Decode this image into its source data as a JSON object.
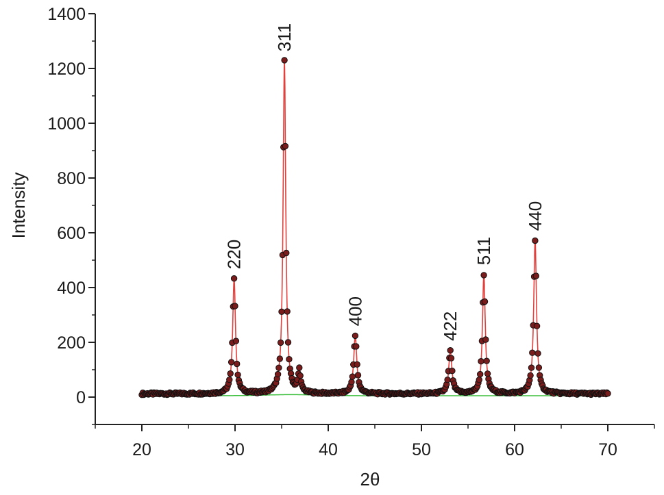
{
  "chart_data": {
    "type": "scatter",
    "xlabel": "2θ",
    "ylabel": "Intensity",
    "xlim": [
      15,
      75
    ],
    "ylim": [
      -100,
      1400
    ],
    "x_ticks": [
      20,
      30,
      40,
      50,
      60,
      70
    ],
    "y_ticks": [
      0,
      200,
      400,
      600,
      800,
      1000,
      1200,
      1400
    ],
    "grid": false,
    "legend": "none",
    "colors": {
      "observed_fill": "#7a1c1c",
      "observed_edge": "#111111",
      "fit_line": "#e2403c",
      "background_line": "#3cbf3c",
      "axis": "#222222"
    },
    "baseline": 12,
    "peaks": [
      {
        "label": "220",
        "x": 29.9,
        "height": 420,
        "width": 0.18
      },
      {
        "label": "311",
        "x": 35.3,
        "height": 1215,
        "width": 0.17
      },
      {
        "x": 36.9,
        "height": 80,
        "width": 0.16
      },
      {
        "label": "400",
        "x": 42.9,
        "height": 212,
        "width": 0.2
      },
      {
        "label": "422",
        "x": 53.1,
        "height": 158,
        "width": 0.2
      },
      {
        "label": "511",
        "x": 56.7,
        "height": 435,
        "width": 0.18
      },
      {
        "label": "440",
        "x": 62.2,
        "height": 560,
        "width": 0.18
      }
    ],
    "scan_range": [
      20,
      70
    ],
    "step": 0.1
  }
}
